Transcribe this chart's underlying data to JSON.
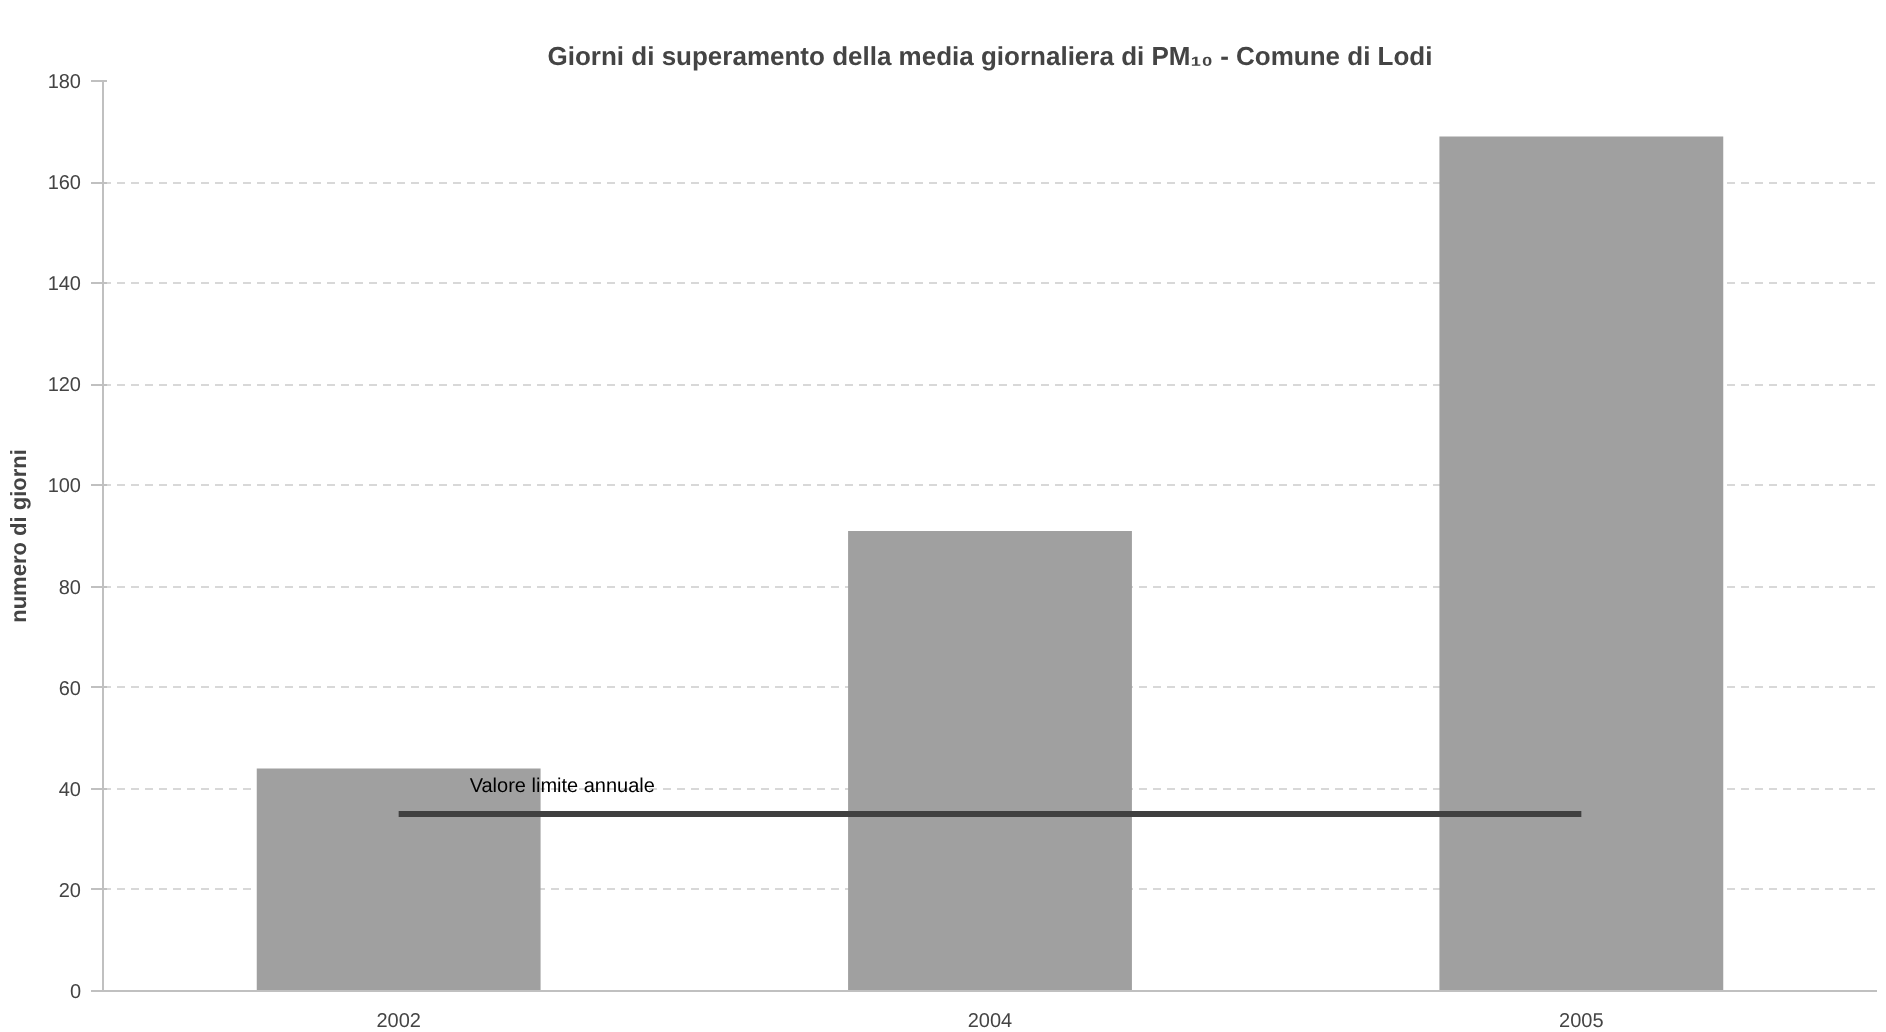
{
  "chart_data": {
    "type": "bar",
    "title": "Giorni di superamento della media giornaliera di PM₁₀ - Comune di Lodi",
    "ylabel": "numero di giorni",
    "categories": [
      "2002",
      "2004",
      "2005"
    ],
    "series": [
      {
        "color": "#a0a0a0",
        "values": [
          44,
          91,
          169
        ]
      },
      {
        "type": "line",
        "name": "Valore limite annuale",
        "color": "#404040",
        "values": [
          35,
          35,
          35
        ]
      }
    ],
    "ylim": [
      0,
      180
    ],
    "yticks": [
      0,
      20,
      40,
      60,
      80,
      100,
      120,
      140,
      160,
      180
    ],
    "grid": "y",
    "line_style": "solid"
  }
}
